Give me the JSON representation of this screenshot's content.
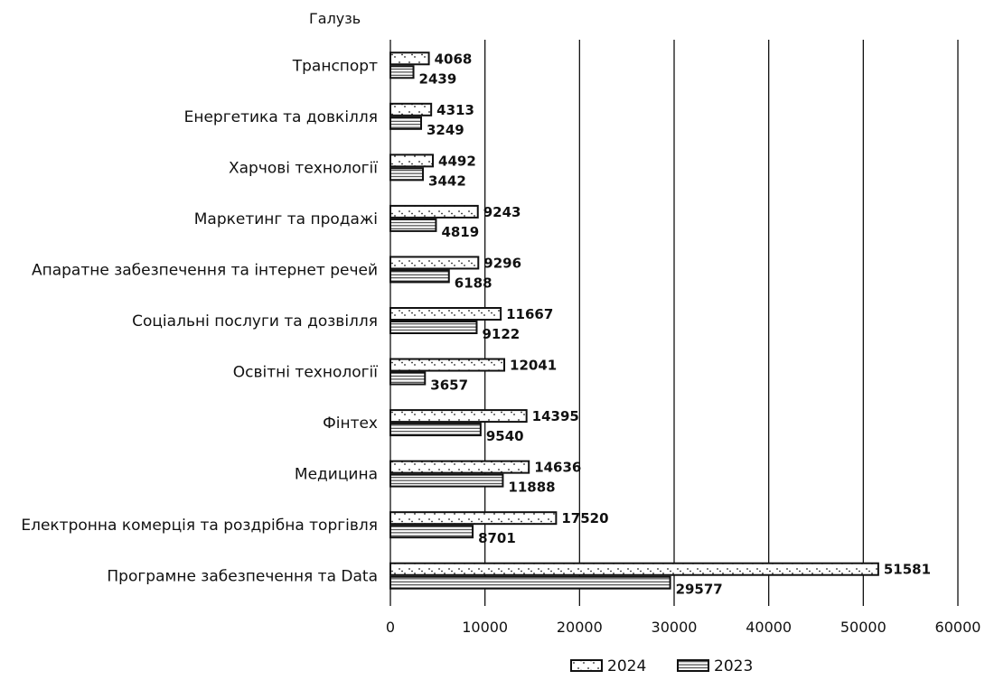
{
  "chart_data": {
    "type": "bar",
    "orientation": "horizontal",
    "ylabel": "Галузь",
    "xlabel": "",
    "xlim": [
      0,
      60000
    ],
    "x_ticks": [
      0,
      10000,
      20000,
      30000,
      40000,
      50000,
      60000
    ],
    "grid": true,
    "legend_position": "bottom",
    "categories": [
      "Транспорт",
      "Енергетика та довкілля",
      "Харчові технології",
      "Маркетинг та продажі",
      "Апаратне забезпечення та інтернет речей",
      "Соціальні послуги та дозвілля",
      "Освітні технології",
      "Фінтех",
      "Медицина",
      "Електронна комерція та роздрібна торгівля",
      "Програмне забезпечення та Data"
    ],
    "series": [
      {
        "name": "2024",
        "pattern": "dotted-diagonal",
        "values": [
          4068,
          4313,
          4492,
          9243,
          9296,
          11667,
          12041,
          14395,
          14636,
          17520,
          51581
        ]
      },
      {
        "name": "2023",
        "pattern": "horizontal-lines",
        "values": [
          2439,
          3249,
          3442,
          4819,
          6188,
          9122,
          3657,
          9540,
          11888,
          8701,
          29577
        ]
      }
    ]
  }
}
